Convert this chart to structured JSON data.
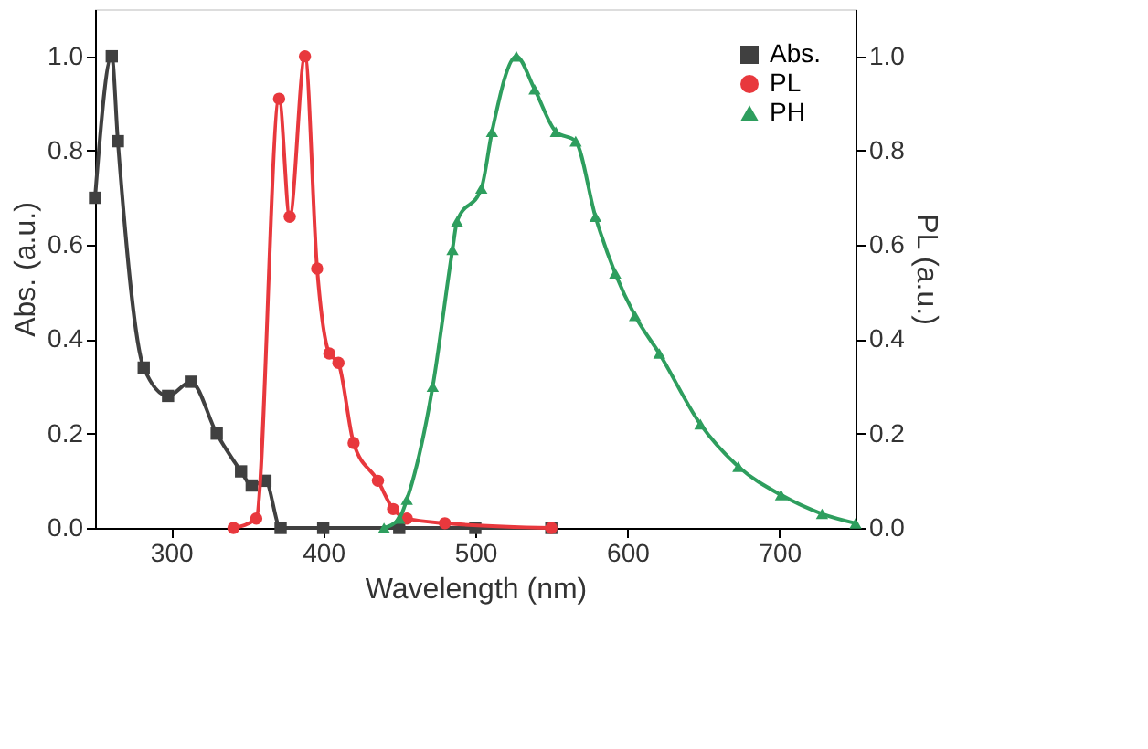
{
  "chart_data": {
    "type": "line",
    "xlabel": "Wavelength (nm)",
    "ylabel": "Abs. (a.u.)",
    "y2label": "PL (a.u.)",
    "xlim": [
      250,
      750
    ],
    "xticks": [
      300,
      400,
      500,
      600,
      700
    ],
    "ylim": [
      0,
      1.1
    ],
    "yticks": [
      {
        "value": 0,
        "label": "0.0"
      },
      {
        "value": 0.2,
        "label": "0.2"
      },
      {
        "value": 0.4,
        "label": "0.4"
      },
      {
        "value": 0.6,
        "label": "0.6"
      },
      {
        "value": 0.8,
        "label": "0.8"
      },
      {
        "value": 1,
        "label": "1.0"
      }
    ],
    "y2lim": [
      0,
      1.1
    ],
    "y2ticks": [
      {
        "value": 0,
        "label": "0.0"
      },
      {
        "value": 0.2,
        "label": "0.2"
      },
      {
        "value": 0.4,
        "label": "0.4"
      },
      {
        "value": 0.6,
        "label": "0.6"
      },
      {
        "value": 0.8,
        "label": "0.8"
      },
      {
        "value": 1,
        "label": "1.0"
      }
    ],
    "grid": false,
    "legend": "top right",
    "line_style": "solid",
    "series": [
      {
        "name": "Abs.",
        "color": "#404040",
        "marker": "square",
        "x": [
          250,
          261,
          265,
          282,
          298,
          313,
          330,
          346,
          353,
          362,
          372,
          400,
          450,
          500,
          550
        ],
        "values": [
          0.7,
          1.0,
          0.82,
          0.34,
          0.28,
          0.31,
          0.2,
          0.12,
          0.09,
          0.1,
          0.0,
          0.0,
          0.0,
          0.0,
          0.0
        ]
      },
      {
        "name": "PL",
        "color": "#e8383d",
        "marker": "circle",
        "axis": "y2",
        "x": [
          341,
          356,
          371,
          378,
          388,
          396,
          404,
          410,
          420,
          436,
          446,
          455,
          480,
          550
        ],
        "values": [
          0.0,
          0.02,
          0.91,
          0.66,
          1.0,
          0.55,
          0.37,
          0.35,
          0.18,
          0.1,
          0.04,
          0.02,
          0.01,
          0.0
        ]
      },
      {
        "name": "PH",
        "color": "#2e9e5e",
        "marker": "triangle",
        "axis": "y2",
        "x": [
          440,
          450,
          455,
          472,
          485,
          488,
          504,
          511,
          527,
          539,
          553,
          566,
          579,
          592,
          605,
          621,
          648,
          673,
          701,
          728,
          750
        ],
        "values": [
          0.0,
          0.02,
          0.06,
          0.3,
          0.59,
          0.65,
          0.72,
          0.84,
          1.0,
          0.93,
          0.84,
          0.82,
          0.66,
          0.54,
          0.45,
          0.37,
          0.22,
          0.13,
          0.07,
          0.03,
          0.01
        ]
      }
    ]
  }
}
